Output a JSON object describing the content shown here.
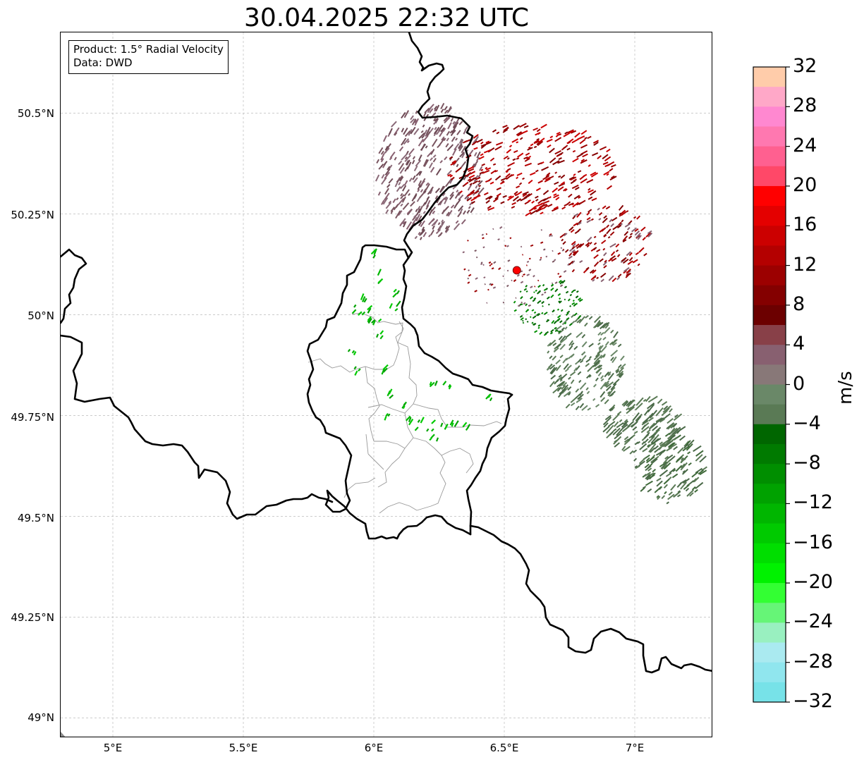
{
  "title": "30.04.2025 22:32 UTC",
  "info": {
    "product": "Product: 1.5° Radial Velocity",
    "source": "Data: DWD"
  },
  "axes": {
    "lon_ticks": [
      "5°E",
      "5.5°E",
      "6°E",
      "6.5°E",
      "7°E"
    ],
    "lat_ticks": [
      "50.5°N",
      "50.25°N",
      "50°N",
      "49.75°N",
      "49.5°N",
      "49.25°N",
      "49°N"
    ],
    "lon_values": [
      5.0,
      5.5,
      6.0,
      6.5,
      7.0
    ],
    "lat_values": [
      50.5,
      50.25,
      50.0,
      49.75,
      49.5,
      49.25,
      49.0
    ],
    "lon_range": [
      4.8,
      7.3
    ],
    "lat_range": [
      48.95,
      50.7
    ],
    "grid": true
  },
  "colorbar": {
    "unit": "m/s",
    "min": -32,
    "max": 32,
    "tick_labels": [
      "32",
      "28",
      "24",
      "20",
      "16",
      "12",
      "8",
      "4",
      "0",
      "−4",
      "−8",
      "−12",
      "−16",
      "−20",
      "−24",
      "−28",
      "−32"
    ],
    "colors_top_to_bottom": [
      "#ffccaa",
      "#ffa8c8",
      "#ff88d0",
      "#ff78b0",
      "#ff6090",
      "#ff4868",
      "#ff0000",
      "#e40000",
      "#cc0000",
      "#b40000",
      "#9c0000",
      "#840000",
      "#6c0000",
      "#884048",
      "#886070",
      "#887878",
      "#6a8868",
      "#5a7a55",
      "#006600",
      "#007a00",
      "#008e00",
      "#00a200",
      "#00b600",
      "#00ca00",
      "#00de00",
      "#00f200",
      "#33ff33",
      "#66f577",
      "#99f0c0",
      "#aaeaf0",
      "#90e6ee",
      "#77e2e8"
    ]
  },
  "radar_site": {
    "lon": 6.548,
    "lat": 50.11,
    "color": "#ff0000"
  },
  "map_colors": {
    "border": "#000000",
    "admin": "#999999",
    "grid": "#bbbbbb"
  }
}
